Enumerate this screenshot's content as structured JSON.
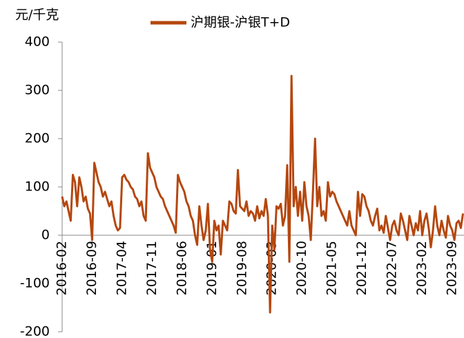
{
  "chart_data": {
    "type": "line",
    "y_unit_label": "元/千克",
    "categories": [
      "2016-02",
      null,
      null,
      null,
      null,
      null,
      null,
      null,
      null,
      null,
      null,
      null,
      null,
      null,
      "2016-09",
      null,
      null,
      null,
      null,
      null,
      null,
      null,
      null,
      null,
      null,
      null,
      null,
      null,
      "2017-04",
      null,
      null,
      null,
      null,
      null,
      null,
      null,
      null,
      null,
      null,
      null,
      null,
      null,
      "2017-11",
      null,
      null,
      null,
      null,
      null,
      null,
      null,
      null,
      null,
      null,
      null,
      null,
      null,
      "2018-06",
      null,
      null,
      null,
      null,
      null,
      null,
      null,
      null,
      null,
      null,
      null,
      null,
      null,
      "2019-01",
      null,
      null,
      null,
      null,
      null,
      null,
      null,
      null,
      null,
      null,
      null,
      null,
      null,
      "2019-08",
      null,
      null,
      null,
      null,
      null,
      null,
      null,
      null,
      null,
      null,
      null,
      null,
      null,
      "2020-03",
      null,
      null,
      null,
      null,
      null,
      null,
      null,
      null,
      null,
      null,
      null,
      null,
      null,
      "2020-10",
      null,
      null,
      null,
      null,
      null,
      null,
      null,
      null,
      null,
      null,
      null,
      null,
      null,
      "2021-05",
      null,
      null,
      null,
      null,
      null,
      null,
      null,
      null,
      null,
      null,
      null,
      null,
      null,
      "2021-12",
      null,
      null,
      null,
      null,
      null,
      null,
      null,
      null,
      null,
      null,
      null,
      null,
      null,
      "2022-07",
      null,
      null,
      null,
      null,
      null,
      null,
      null,
      null,
      null,
      null,
      null,
      null,
      null,
      "2023-02",
      null,
      null,
      null,
      null,
      null,
      null,
      null,
      null,
      null,
      null,
      null,
      null,
      null,
      "2023-09",
      null,
      null,
      null,
      null,
      null
    ],
    "series": [
      {
        "name": "沪期银-沪银T+D",
        "color": "#b5470e",
        "values": [
          80,
          60,
          70,
          50,
          30,
          125,
          110,
          60,
          120,
          100,
          70,
          80,
          55,
          45,
          -10,
          150,
          130,
          110,
          100,
          80,
          90,
          75,
          60,
          70,
          40,
          20,
          10,
          15,
          120,
          125,
          115,
          110,
          100,
          95,
          80,
          75,
          60,
          70,
          40,
          30,
          170,
          140,
          130,
          120,
          100,
          90,
          80,
          75,
          60,
          50,
          40,
          30,
          20,
          5,
          125,
          110,
          100,
          90,
          70,
          60,
          40,
          30,
          0,
          -20,
          60,
          20,
          -10,
          10,
          65,
          -30,
          -55,
          30,
          10,
          20,
          -40,
          30,
          20,
          10,
          70,
          65,
          50,
          45,
          135,
          60,
          55,
          50,
          70,
          40,
          50,
          45,
          30,
          60,
          35,
          50,
          40,
          75,
          40,
          -160,
          20,
          -30,
          60,
          55,
          65,
          20,
          40,
          145,
          -55,
          330,
          60,
          100,
          40,
          90,
          30,
          110,
          60,
          40,
          -10,
          90,
          200,
          60,
          100,
          40,
          50,
          30,
          110,
          80,
          90,
          85,
          70,
          60,
          50,
          40,
          30,
          20,
          50,
          20,
          10,
          0,
          90,
          40,
          85,
          80,
          60,
          50,
          30,
          20,
          40,
          55,
          10,
          20,
          5,
          40,
          15,
          -10,
          20,
          30,
          10,
          0,
          45,
          30,
          10,
          -10,
          40,
          20,
          0,
          25,
          10,
          50,
          0,
          30,
          45,
          15,
          -25,
          10,
          60,
          20,
          0,
          30,
          10,
          -5,
          40,
          20,
          10,
          -10,
          25,
          30,
          15,
          45
        ]
      }
    ],
    "ylim": [
      -200,
      400
    ],
    "yticks": [
      -200,
      -100,
      0,
      100,
      200,
      300,
      400
    ],
    "grid": false,
    "legend": "top"
  }
}
